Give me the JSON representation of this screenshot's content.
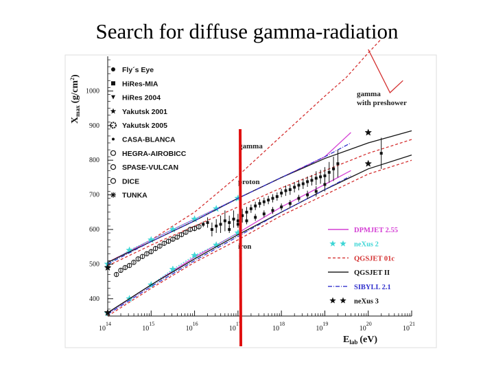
{
  "slide": {
    "title": "Search for diffuse gamma-radiation"
  },
  "chart_data": {
    "type": "scatter",
    "x_scale": "log",
    "xlim_log10_eV": [
      14,
      21
    ],
    "ylim": [
      350,
      1100
    ],
    "xlabel_main": "E",
    "xlabel_sub": "lab",
    "xlabel_unit": "(eV)",
    "ylabel_main": "X",
    "ylabel_sub": "max",
    "ylabel_unit": "(g/cm",
    "ylabel_sup": "2",
    "ylabel_close": ")",
    "x_tick_base": "10",
    "x_tick_exponents": [
      "14",
      "15",
      "16",
      "17",
      "18",
      "19",
      "20",
      "21"
    ],
    "y_ticks": [
      "400",
      "500",
      "600",
      "700",
      "800",
      "900",
      "1000"
    ],
    "grid": false,
    "annotations": {
      "gamma": "gamma",
      "proton": "proton",
      "iron": "iron",
      "preshower_line1": "gamma",
      "preshower_line2": "with preshower"
    },
    "marker_at_log10_eV": 17.05,
    "legend_experiments": [
      "Fly´s Eye",
      "HiRes-MIA",
      "HiRes 2004",
      "Yakutsk 2001",
      "Yakutsk 2005",
      "CASA-BLANCA",
      "HEGRA-AIROBICC",
      "SPASE-VULCAN",
      "DICE",
      "TUNKA"
    ],
    "legend_models": [
      {
        "name": "DPMJET 2.55",
        "color": "#d43fd4",
        "style": "solid"
      },
      {
        "name": "neXus 2",
        "color": "#3fd6d6",
        "style": "stars"
      },
      {
        "name": "QGSJET 01c",
        "color": "#d43030",
        "style": "dashed"
      },
      {
        "name": "QGSJET II",
        "color": "#111111",
        "style": "solid"
      },
      {
        "name": "SIBYLL 2.1",
        "color": "#3030cc",
        "style": "dashdot"
      },
      {
        "name": "neXus 3",
        "color": "#111111",
        "style": "stars"
      }
    ],
    "series": [
      {
        "name": "gamma",
        "color": "#d43030",
        "style": "dashed",
        "x": [
          14,
          15,
          16,
          17,
          18,
          19,
          19.5,
          20,
          20.3
        ],
        "y": [
          505,
          570,
          650,
          755,
          870,
          985,
          1040,
          1110,
          1150
        ]
      },
      {
        "name": "gamma with preshower",
        "color": "#d43030",
        "style": "solid",
        "x": [
          20,
          20.5,
          20.8
        ],
        "y": [
          1120,
          995,
          1030
        ]
      },
      {
        "name": "DPMJET 2.55 proton",
        "color": "#d43fd4",
        "style": "solid",
        "x": [
          14,
          15,
          16,
          17,
          18,
          19,
          19.6
        ],
        "y": [
          505,
          570,
          630,
          690,
          750,
          810,
          880
        ]
      },
      {
        "name": "DPMJET 2.55 iron",
        "color": "#d43fd4",
        "style": "solid",
        "x": [
          14,
          15,
          16,
          17,
          18,
          19,
          19.6
        ],
        "y": [
          358,
          440,
          520,
          590,
          665,
          730,
          770
        ]
      },
      {
        "name": "neXus 2 proton",
        "color": "#3fd6d6",
        "style": "stars",
        "x": [
          14,
          14.5,
          15,
          15.5,
          16,
          16.5,
          17
        ],
        "y": [
          500,
          540,
          570,
          600,
          630,
          660,
          690
        ]
      },
      {
        "name": "neXus 2 iron",
        "color": "#3fd6d6",
        "style": "stars",
        "x": [
          14,
          14.5,
          15,
          15.5,
          16,
          16.5,
          17
        ],
        "y": [
          358,
          400,
          440,
          485,
          525,
          555,
          590
        ]
      },
      {
        "name": "QGSJET 01c proton",
        "color": "#d43030",
        "style": "dashed",
        "x": [
          14,
          15,
          16,
          17,
          18,
          19,
          20,
          21
        ],
        "y": [
          495,
          555,
          610,
          665,
          720,
          770,
          820,
          860
        ]
      },
      {
        "name": "QGSJET 01c iron",
        "color": "#d43030",
        "style": "dashed",
        "x": [
          14,
          15,
          16,
          17,
          18,
          19,
          20,
          21
        ],
        "y": [
          350,
          430,
          505,
          570,
          640,
          700,
          760,
          800
        ]
      },
      {
        "name": "QGSJET II proton",
        "color": "#111111",
        "style": "solid",
        "x": [
          14,
          15,
          16,
          17,
          18,
          19,
          20,
          21
        ],
        "y": [
          505,
          565,
          625,
          690,
          750,
          805,
          850,
          885
        ]
      },
      {
        "name": "QGSJET II iron",
        "color": "#111111",
        "style": "solid",
        "x": [
          14,
          15,
          16,
          17,
          18,
          19,
          20,
          21
        ],
        "y": [
          360,
          440,
          515,
          585,
          650,
          715,
          775,
          815
        ]
      },
      {
        "name": "SIBYLL 2.1 proton",
        "color": "#3030cc",
        "style": "dashdot",
        "x": [
          14,
          15,
          16,
          17,
          18,
          19,
          19.6
        ],
        "y": [
          500,
          565,
          625,
          690,
          750,
          810,
          850
        ]
      },
      {
        "name": "SIBYLL 2.1 iron",
        "color": "#3030cc",
        "style": "dashdot",
        "x": [
          14,
          15,
          16,
          17,
          18,
          19,
          19.6
        ],
        "y": [
          355,
          435,
          510,
          580,
          650,
          715,
          755
        ]
      },
      {
        "name": "neXus 3",
        "color": "#111111",
        "style": "stars",
        "x": [
          14,
          14,
          20,
          20
        ],
        "y": [
          490,
          360,
          880,
          790
        ]
      }
    ],
    "data_points": {
      "x": [
        14.2,
        14.3,
        14.4,
        14.5,
        14.6,
        14.7,
        14.8,
        14.9,
        15.0,
        15.1,
        15.2,
        15.3,
        15.4,
        15.5,
        15.6,
        15.7,
        15.8,
        15.9,
        16.0,
        16.1,
        16.2,
        16.3,
        16.4,
        16.5,
        16.6,
        16.7,
        16.8,
        16.9,
        17.0,
        17.1,
        17.2,
        17.3,
        17.4,
        17.5,
        17.6,
        17.7,
        17.8,
        17.9,
        18.0,
        18.1,
        18.2,
        18.3,
        18.4,
        18.5,
        18.6,
        18.7,
        18.8,
        18.9,
        19.0,
        19.1,
        19.2,
        19.3,
        16.8,
        17.0,
        17.2,
        17.4,
        17.6,
        17.8,
        18.0,
        18.2,
        18.4,
        18.6,
        18.8,
        19.0,
        20.3
      ],
      "y": [
        470,
        482,
        490,
        496,
        505,
        515,
        522,
        530,
        536,
        545,
        552,
        560,
        566,
        572,
        578,
        585,
        592,
        600,
        603,
        608,
        615,
        620,
        600,
        610,
        615,
        625,
        620,
        630,
        625,
        640,
        650,
        660,
        668,
        675,
        680,
        685,
        690,
        695,
        705,
        712,
        715,
        722,
        728,
        732,
        738,
        742,
        748,
        752,
        755,
        765,
        775,
        790,
        600,
        615,
        625,
        635,
        645,
        655,
        665,
        675,
        690,
        700,
        710,
        730,
        820
      ],
      "err": [
        5,
        5,
        5,
        5,
        5,
        5,
        5,
        5,
        6,
        6,
        6,
        6,
        6,
        6,
        6,
        6,
        6,
        6,
        8,
        8,
        8,
        15,
        20,
        20,
        25,
        30,
        20,
        25,
        20,
        20,
        15,
        12,
        12,
        12,
        12,
        12,
        12,
        12,
        12,
        15,
        15,
        15,
        15,
        15,
        15,
        15,
        20,
        20,
        25,
        30,
        35,
        40,
        10,
        10,
        10,
        10,
        10,
        10,
        10,
        10,
        10,
        12,
        15,
        20,
        45
      ]
    }
  }
}
